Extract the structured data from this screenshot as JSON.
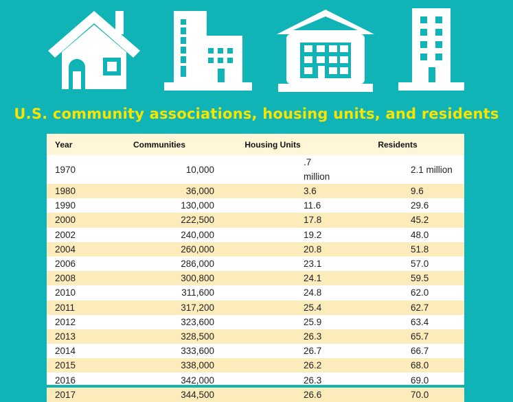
{
  "title": "U.S. community associations, housing units, and residents",
  "colors": {
    "background": "#10b3b6",
    "title": "#f7e400",
    "row_alt": "#fcebbb",
    "header": "#fff6d8"
  },
  "icons": [
    "house-icon",
    "office-buildings-icon",
    "apartment-building-icon",
    "tower-icon"
  ],
  "table": {
    "headers": {
      "year": "Year",
      "communities": "Communities",
      "housing_units": "Housing Units",
      "residents": "Residents"
    },
    "rows": [
      {
        "year": "1970",
        "communities": "10,000",
        "housing_units": ".7 million",
        "residents": "2.1 million"
      },
      {
        "year": "1980",
        "communities": "36,000",
        "housing_units": "3.6",
        "residents": "9.6"
      },
      {
        "year": "1990",
        "communities": "130,000",
        "housing_units": "11.6",
        "residents": "29.6"
      },
      {
        "year": "2000",
        "communities": "222,500",
        "housing_units": "17.8",
        "residents": "45.2"
      },
      {
        "year": "2002",
        "communities": "240,000",
        "housing_units": "19.2",
        "residents": "48.0"
      },
      {
        "year": "2004",
        "communities": "260,000",
        "housing_units": "20.8",
        "residents": "51.8"
      },
      {
        "year": "2006",
        "communities": "286,000",
        "housing_units": "23.1",
        "residents": "57.0"
      },
      {
        "year": "2008",
        "communities": "300,800",
        "housing_units": "24.1",
        "residents": "59.5"
      },
      {
        "year": "2010",
        "communities": "311,600",
        "housing_units": "24.8",
        "residents": "62.0"
      },
      {
        "year": "2011",
        "communities": "317,200",
        "housing_units": "25.4",
        "residents": "62.7"
      },
      {
        "year": "2012",
        "communities": "323,600",
        "housing_units": "25.9",
        "residents": "63.4"
      },
      {
        "year": "2013",
        "communities": "328,500",
        "housing_units": "26.3",
        "residents": "65.7"
      },
      {
        "year": "2014",
        "communities": "333,600",
        "housing_units": "26.7",
        "residents": "66.7"
      },
      {
        "year": "2015",
        "communities": "338,000",
        "housing_units": "26.2",
        "residents": "68.0"
      },
      {
        "year": "2016",
        "communities": "342,000",
        "housing_units": "26.3",
        "residents": "69.0"
      },
      {
        "year": "2017",
        "communities": "344,500",
        "housing_units": "26.6",
        "residents": "70.0"
      }
    ]
  }
}
